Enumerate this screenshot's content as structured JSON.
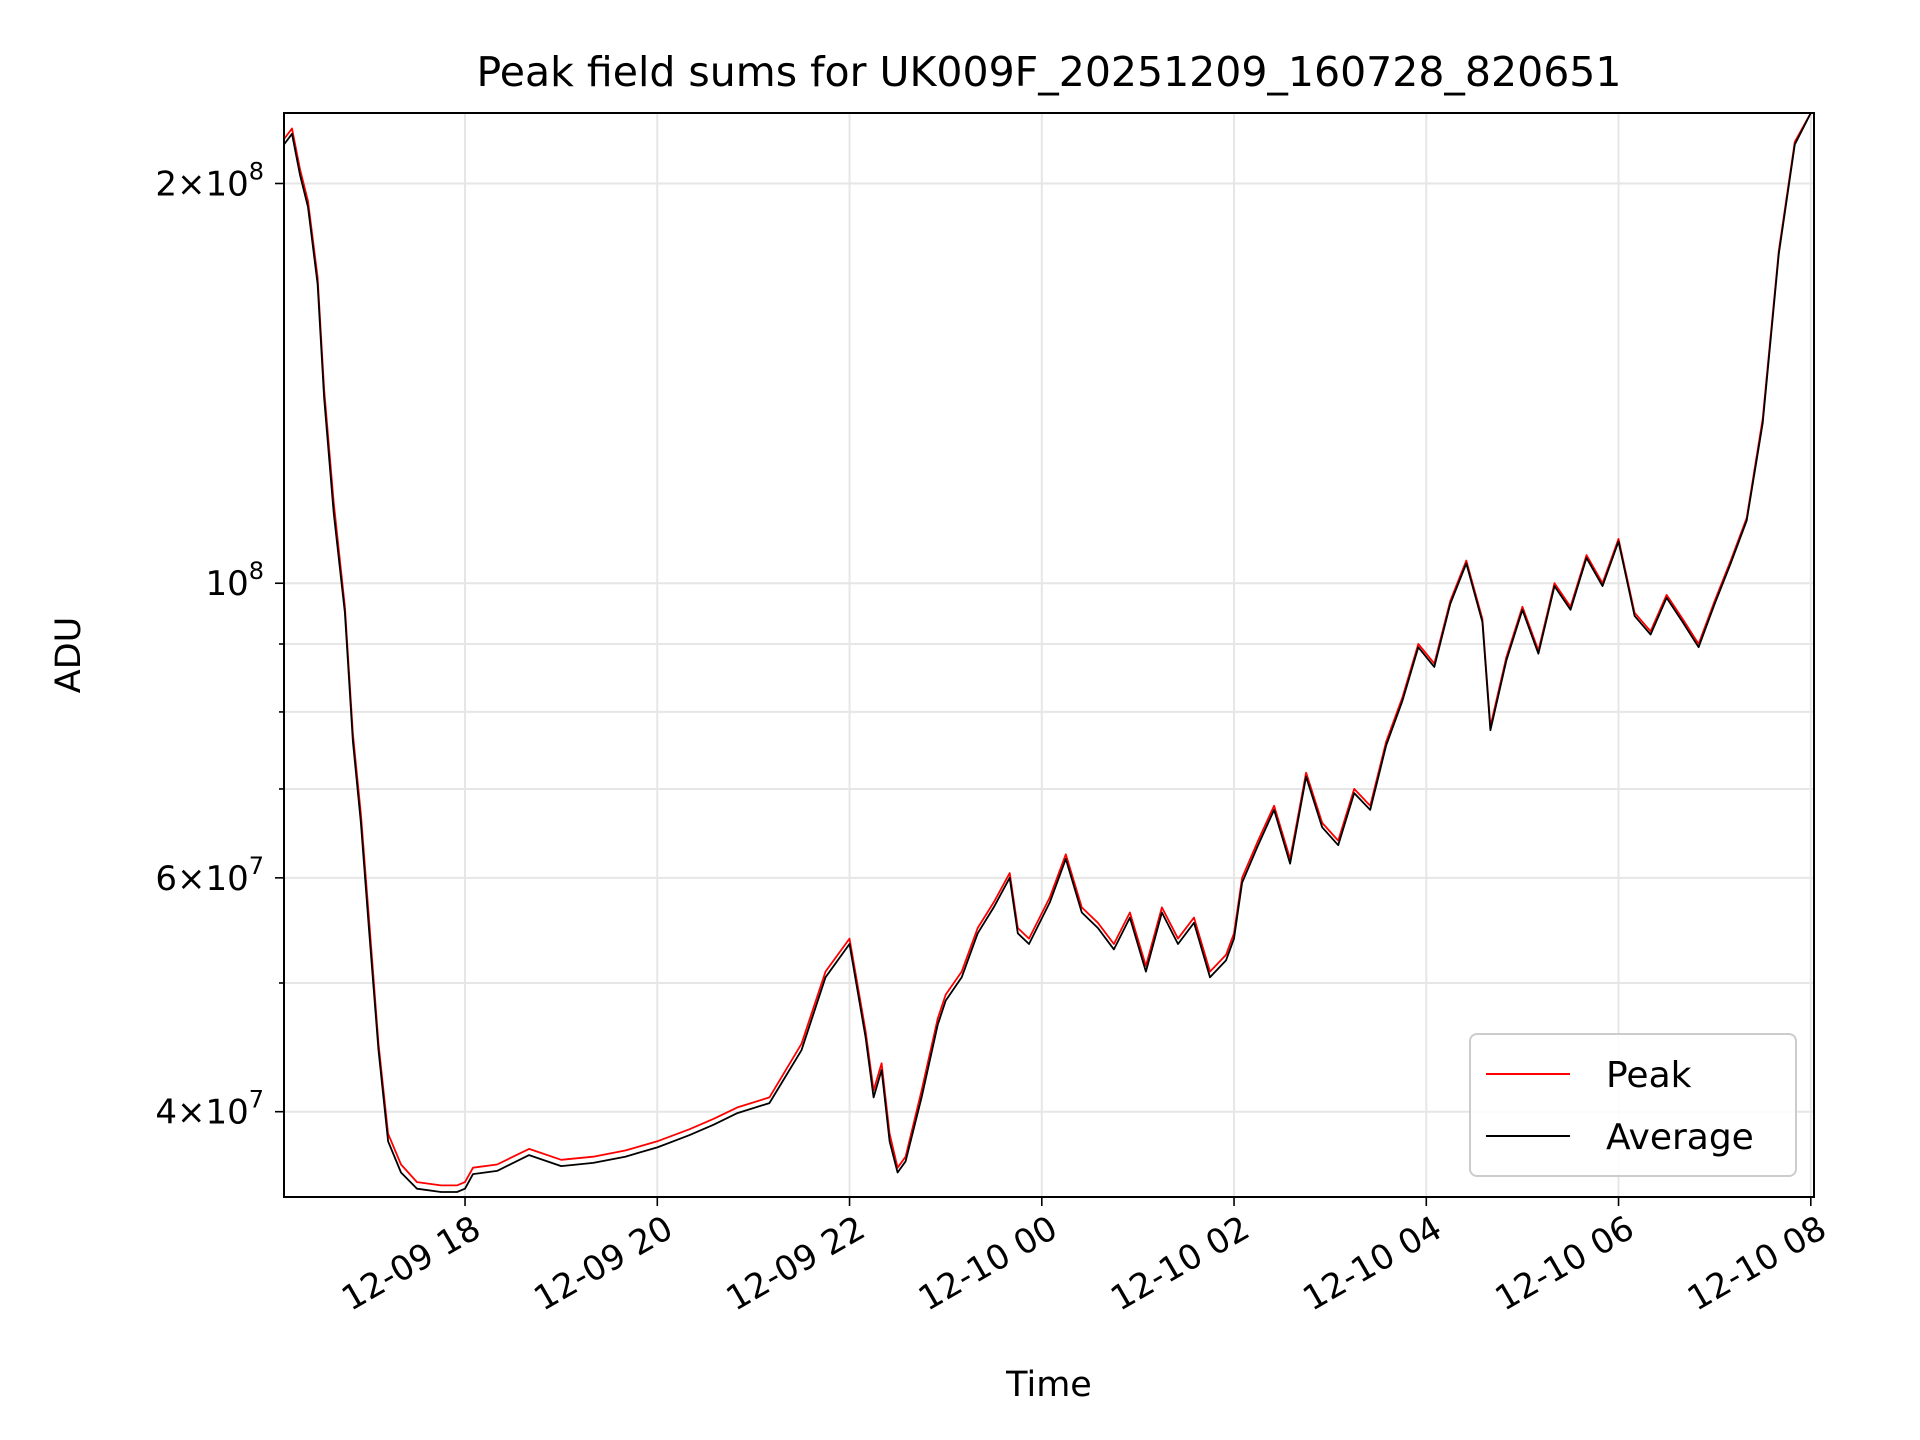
{
  "chart_data": {
    "type": "line",
    "title": "Peak field sums for UK009F_20251209_160728_820651",
    "xlabel": "Time",
    "ylabel": "ADU",
    "yscale": "log",
    "xlim": [
      "2025-12-09 16:07",
      "2025-12-10 08:02"
    ],
    "ylim": [
      34500000,
      226000000
    ],
    "x_ticks": [
      "12-09 18",
      "12-09 20",
      "12-09 22",
      "12-10 00",
      "12-10 02",
      "12-10 04",
      "12-10 06",
      "12-10 08"
    ],
    "y_major_ticks": [
      {
        "value": 40000000,
        "mantissa": "4",
        "exponent": "7"
      },
      {
        "value": 60000000,
        "mantissa": "6",
        "exponent": "7"
      },
      {
        "value": 100000000,
        "mantissa": "",
        "exponent": "8"
      },
      {
        "value": 200000000,
        "mantissa": "2",
        "exponent": "8"
      }
    ],
    "y_minor_ticks": [
      50000000,
      70000000,
      80000000,
      90000000
    ],
    "grid": true,
    "legend_position": "lower-right",
    "x": [
      "2025-12-09 16:07",
      "2025-12-09 16:12",
      "2025-12-09 16:17",
      "2025-12-09 16:22",
      "2025-12-09 16:28",
      "2025-12-09 16:32",
      "2025-12-09 16:38",
      "2025-12-09 16:45",
      "2025-12-09 16:50",
      "2025-12-09 16:55",
      "2025-12-09 17:00",
      "2025-12-09 17:06",
      "2025-12-09 17:12",
      "2025-12-09 17:20",
      "2025-12-09 17:30",
      "2025-12-09 17:45",
      "2025-12-09 17:55",
      "2025-12-09 18:00",
      "2025-12-09 18:05",
      "2025-12-09 18:20",
      "2025-12-09 18:40",
      "2025-12-09 19:00",
      "2025-12-09 19:20",
      "2025-12-09 19:40",
      "2025-12-09 20:00",
      "2025-12-09 20:20",
      "2025-12-09 20:35",
      "2025-12-09 20:50",
      "2025-12-09 21:10",
      "2025-12-09 21:30",
      "2025-12-09 21:45",
      "2025-12-09 22:00",
      "2025-12-09 22:10",
      "2025-12-09 22:15",
      "2025-12-09 22:20",
      "2025-12-09 22:25",
      "2025-12-09 22:30",
      "2025-12-09 22:35",
      "2025-12-09 22:45",
      "2025-12-09 22:55",
      "2025-12-09 23:00",
      "2025-12-09 23:10",
      "2025-12-09 23:20",
      "2025-12-09 23:30",
      "2025-12-09 23:40",
      "2025-12-09 23:45",
      "2025-12-09 23:52",
      "2025-12-10 00:05",
      "2025-12-10 00:15",
      "2025-12-10 00:25",
      "2025-12-10 00:35",
      "2025-12-10 00:45",
      "2025-12-10 00:55",
      "2025-12-10 01:05",
      "2025-12-10 01:15",
      "2025-12-10 01:25",
      "2025-12-10 01:35",
      "2025-12-10 01:45",
      "2025-12-10 01:55",
      "2025-12-10 02:00",
      "2025-12-10 02:05",
      "2025-12-10 02:15",
      "2025-12-10 02:25",
      "2025-12-10 02:35",
      "2025-12-10 02:45",
      "2025-12-10 02:55",
      "2025-12-10 03:05",
      "2025-12-10 03:15",
      "2025-12-10 03:25",
      "2025-12-10 03:35",
      "2025-12-10 03:45",
      "2025-12-10 03:55",
      "2025-12-10 04:05",
      "2025-12-10 04:15",
      "2025-12-10 04:25",
      "2025-12-10 04:35",
      "2025-12-10 04:40",
      "2025-12-10 04:50",
      "2025-12-10 05:00",
      "2025-12-10 05:10",
      "2025-12-10 05:20",
      "2025-12-10 05:30",
      "2025-12-10 05:40",
      "2025-12-10 05:50",
      "2025-12-10 06:00",
      "2025-12-10 06:10",
      "2025-12-10 06:20",
      "2025-12-10 06:30",
      "2025-12-10 06:40",
      "2025-12-10 06:50",
      "2025-12-10 07:00",
      "2025-12-10 07:10",
      "2025-12-10 07:20",
      "2025-12-10 07:30",
      "2025-12-10 07:40",
      "2025-12-10 07:50",
      "2025-12-10 08:00"
    ],
    "series": [
      {
        "name": "Peak",
        "color": "#ff0000",
        "values": [
          216000000,
          220000000,
          205000000,
          194000000,
          170000000,
          140000000,
          115000000,
          96000000,
          77000000,
          67000000,
          56000000,
          45000000,
          38500000,
          36500000,
          35400000,
          35200000,
          35200000,
          35400000,
          36300000,
          36500000,
          37500000,
          36800000,
          37000000,
          37400000,
          38000000,
          38800000,
          39500000,
          40300000,
          41000000,
          45000000,
          51000000,
          54000000,
          46000000,
          41500000,
          43500000,
          38500000,
          36300000,
          37000000,
          41500000,
          47000000,
          49000000,
          51000000,
          55000000,
          57500000,
          60500000,
          55000000,
          54000000,
          58000000,
          62500000,
          57000000,
          55500000,
          53500000,
          56500000,
          51500000,
          57000000,
          54000000,
          56000000,
          51000000,
          52500000,
          54500000,
          60000000,
          64000000,
          68000000,
          62000000,
          72000000,
          66000000,
          64000000,
          70000000,
          68000000,
          76000000,
          82000000,
          90000000,
          87000000,
          97000000,
          104000000,
          94000000,
          78000000,
          88000000,
          96000000,
          89000000,
          100000000,
          96000000,
          105000000,
          100000000,
          108000000,
          95000000,
          92000000,
          98000000,
          94000000,
          90000000,
          97000000,
          104000000,
          112000000,
          133000000,
          178000000,
          215000000,
          226000000
        ]
      },
      {
        "name": "Average",
        "color": "#000000",
        "values": [
          214000000,
          218000000,
          203000000,
          192000000,
          168000000,
          138000000,
          113000000,
          95000000,
          76000000,
          66000000,
          55000000,
          44500000,
          38000000,
          36000000,
          35000000,
          34800000,
          34800000,
          35000000,
          35900000,
          36100000,
          37100000,
          36400000,
          36600000,
          37000000,
          37600000,
          38400000,
          39100000,
          39900000,
          40600000,
          44500000,
          50500000,
          53500000,
          45500000,
          41000000,
          43000000,
          38000000,
          36000000,
          36700000,
          41000000,
          46500000,
          48500000,
          50500000,
          54500000,
          57000000,
          60000000,
          54500000,
          53500000,
          57500000,
          62000000,
          56500000,
          55000000,
          53000000,
          56000000,
          51000000,
          56500000,
          53500000,
          55500000,
          50500000,
          52000000,
          54000000,
          59500000,
          63500000,
          67500000,
          61500000,
          71500000,
          65500000,
          63500000,
          69500000,
          67500000,
          75500000,
          81500000,
          89500000,
          86500000,
          96500000,
          103500000,
          93500000,
          77500000,
          87500000,
          95500000,
          88500000,
          99500000,
          95500000,
          104500000,
          99500000,
          107500000,
          94500000,
          91500000,
          97500000,
          93500000,
          89500000,
          96500000,
          103500000,
          111500000,
          132000000,
          177000000,
          214000000,
          226000000
        ]
      }
    ]
  }
}
